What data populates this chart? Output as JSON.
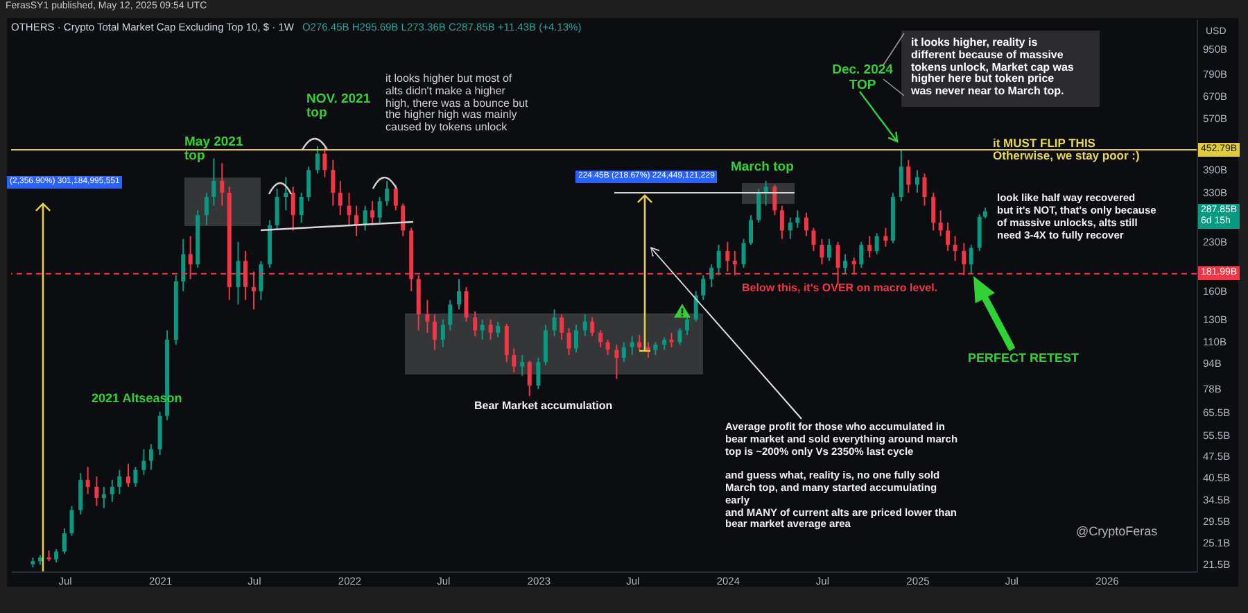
{
  "chart_data": {
    "type": "candlestick",
    "title": "OTHERS · Crypto Total Market Cap Excluding Top 10, $ · 1W",
    "subtitle": "O276.45B H295.69B L273.36B C287.85B +11.43B (+4.13%)",
    "ylabel": "USD",
    "annotations": [
      "FerasSY1 published, May 12, 2025 09:54 UTC",
      "(2,356.90%) 301,184,995,551",
      "May 2021\ntop",
      "NOV. 2021\ntop",
      "it looks higher but most of\nalts didn't make a higher\nhigh, there was a bounce but\nthe higher high was mainly\ncaused by tokens unlock",
      "2021 Altseason",
      "224.45B (218.67%) 224,449,121,229",
      "March top",
      "Bear Market accumulation",
      "Below this, it's OVER on macro level.",
      "Average profit for those who accumulated in\nbear market and sold everything around march\ntop is ~200% only Vs 2350% last cycle\n\nand guess what, reality is, no one fully sold\nMarch top, and many started accumulating\nearly\nand MANY of current alts are priced lower than\nbear market average area",
      "Dec. 2024\nTOP",
      "it looks higher, reality is\ndifferent because of massive\ntokens unlock, Market cap was\nhigher here but token price\nwas never near to March top.",
      "it MUST FLIP THIS\nOtherwise, we stay poor :)",
      "look like half way recovered\nbut it's NOT, that's only because\nof massive unlocks, alts still\nneed 3-4X to fully recover",
      "PERFECT RETEST",
      "@CryptoFeras",
      "287.85B\n6d 15h"
    ],
    "x": [
      "2020-05-01",
      "2020-05-15",
      "2020-06-01",
      "2020-06-15",
      "2020-07-01",
      "2020-07-15",
      "2020-08-01",
      "2020-08-15",
      "2020-09-01",
      "2020-09-15",
      "2020-10-01",
      "2020-10-15",
      "2020-11-01",
      "2020-11-15",
      "2020-12-01",
      "2020-12-15",
      "2021-01-01",
      "2021-01-15",
      "2021-02-01",
      "2021-02-15",
      "2021-03-01",
      "2021-03-15",
      "2021-04-01",
      "2021-04-15",
      "2021-05-01",
      "2021-05-15",
      "2021-06-01",
      "2021-06-15",
      "2021-07-01",
      "2021-07-15",
      "2021-08-01",
      "2021-08-15",
      "2021-09-01",
      "2021-09-15",
      "2021-10-01",
      "2021-10-15",
      "2021-11-01",
      "2021-11-15",
      "2021-12-01",
      "2021-12-15",
      "2022-01-01",
      "2022-01-15",
      "2022-02-01",
      "2022-02-15",
      "2022-03-01",
      "2022-03-15",
      "2022-04-01",
      "2022-04-15",
      "2022-05-01",
      "2022-05-15",
      "2022-06-01",
      "2022-06-15",
      "2022-07-01",
      "2022-07-15",
      "2022-08-01",
      "2022-08-15",
      "2022-09-01",
      "2022-09-15",
      "2022-10-01",
      "2022-10-15",
      "2022-11-01",
      "2022-11-15",
      "2022-12-01",
      "2022-12-15",
      "2023-01-01",
      "2023-01-15",
      "2023-02-01",
      "2023-02-15",
      "2023-03-01",
      "2023-03-15",
      "2023-04-01",
      "2023-04-15",
      "2023-05-01",
      "2023-05-15",
      "2023-06-01",
      "2023-06-15",
      "2023-07-01",
      "2023-07-15",
      "2023-08-01",
      "2023-08-15",
      "2023-09-01",
      "2023-09-15",
      "2023-10-01",
      "2023-10-15",
      "2023-11-01",
      "2023-11-15",
      "2023-12-01",
      "2023-12-15",
      "2024-01-01",
      "2024-01-15",
      "2024-02-01",
      "2024-02-15",
      "2024-03-01",
      "2024-03-15",
      "2024-04-01",
      "2024-04-15",
      "2024-05-01",
      "2024-05-15",
      "2024-06-01",
      "2024-06-15",
      "2024-07-01",
      "2024-07-15",
      "2024-08-01",
      "2024-08-15",
      "2024-09-01",
      "2024-09-15",
      "2024-10-01",
      "2024-10-15",
      "2024-11-01",
      "2024-11-15",
      "2024-12-01",
      "2024-12-15",
      "2025-01-01",
      "2025-01-15",
      "2025-02-01",
      "2025-02-15",
      "2025-03-01",
      "2025-03-15",
      "2025-04-01",
      "2025-04-15",
      "2025-05-01",
      "2025-05-12"
    ],
    "ohlc": [
      [
        21.5,
        22.6,
        21.0,
        22.0
      ],
      [
        22.0,
        23.0,
        21.4,
        22.6
      ],
      [
        22.6,
        23.8,
        22.0,
        22.3
      ],
      [
        22.3,
        24.0,
        21.8,
        23.6
      ],
      [
        23.6,
        28.0,
        23.2,
        27.0
      ],
      [
        27.0,
        33.0,
        26.5,
        32.0
      ],
      [
        32.0,
        42.0,
        31.0,
        40.0
      ],
      [
        40.0,
        44.0,
        36.0,
        38.0
      ],
      [
        38.0,
        41.0,
        33.0,
        35.0
      ],
      [
        35.0,
        38.0,
        32.5,
        36.0
      ],
      [
        36.0,
        40.0,
        34.0,
        38.0
      ],
      [
        38.0,
        43.0,
        36.0,
        41.0
      ],
      [
        41.0,
        45.0,
        38.0,
        39.0
      ],
      [
        39.0,
        44.0,
        38.0,
        43.0
      ],
      [
        43.0,
        50.0,
        41.5,
        46.0
      ],
      [
        46.0,
        52.0,
        43.0,
        50.0
      ],
      [
        50,
        66,
        48,
        64
      ],
      [
        64,
        120,
        62,
        112
      ],
      [
        112,
        180,
        108,
        172
      ],
      [
        172,
        235,
        160,
        210
      ],
      [
        210,
        240,
        175,
        195
      ],
      [
        195,
        290,
        190,
        280
      ],
      [
        280,
        330,
        260,
        320
      ],
      [
        320,
        425,
        300,
        360
      ],
      [
        360,
        410,
        300,
        330
      ],
      [
        330,
        345,
        150,
        165
      ],
      [
        165,
        230,
        145,
        200
      ],
      [
        200,
        215,
        150,
        165
      ],
      [
        165,
        185,
        140,
        160
      ],
      [
        160,
        200,
        150,
        195
      ],
      [
        195,
        270,
        190,
        260
      ],
      [
        260,
        340,
        250,
        320
      ],
      [
        320,
        370,
        290,
        330
      ],
      [
        330,
        345,
        250,
        280
      ],
      [
        280,
        330,
        265,
        320
      ],
      [
        320,
        400,
        310,
        390
      ],
      [
        390,
        465,
        380,
        440
      ],
      [
        440,
        460,
        370,
        390
      ],
      [
        390,
        420,
        300,
        330
      ],
      [
        330,
        360,
        280,
        300
      ],
      [
        300,
        330,
        260,
        280
      ],
      [
        280,
        300,
        240,
        260
      ],
      [
        260,
        300,
        250,
        290
      ],
      [
        290,
        310,
        260,
        275
      ],
      [
        275,
        320,
        265,
        310
      ],
      [
        310,
        360,
        300,
        340
      ],
      [
        340,
        350,
        290,
        300
      ],
      [
        300,
        305,
        240,
        250
      ],
      [
        250,
        255,
        160,
        175
      ],
      [
        175,
        180,
        120,
        135
      ],
      [
        135,
        150,
        118,
        128
      ],
      [
        128,
        135,
        104,
        112
      ],
      [
        112,
        130,
        106,
        125
      ],
      [
        125,
        150,
        120,
        145
      ],
      [
        145,
        175,
        140,
        160
      ],
      [
        160,
        165,
        128,
        132
      ],
      [
        132,
        138,
        115,
        120
      ],
      [
        120,
        130,
        112,
        125
      ],
      [
        125,
        130,
        112,
        118
      ],
      [
        118,
        128,
        114,
        124
      ],
      [
        124,
        126,
        95,
        100
      ],
      [
        100,
        105,
        88,
        92
      ],
      [
        92,
        100,
        86,
        95
      ],
      [
        95,
        96,
        74,
        80
      ],
      [
        80,
        98,
        78,
        95
      ],
      [
        95,
        125,
        93,
        120
      ],
      [
        120,
        140,
        115,
        132
      ],
      [
        132,
        135,
        112,
        118
      ],
      [
        118,
        122,
        100,
        105
      ],
      [
        105,
        125,
        102,
        120
      ],
      [
        120,
        135,
        115,
        128
      ],
      [
        128,
        132,
        115,
        118
      ],
      [
        118,
        120,
        106,
        110
      ],
      [
        110,
        112,
        100,
        104
      ],
      [
        104,
        108,
        84,
        98
      ],
      [
        98,
        110,
        95,
        106
      ],
      [
        106,
        115,
        100,
        110
      ],
      [
        110,
        116,
        104,
        106
      ],
      [
        106,
        110,
        98,
        104
      ],
      [
        104,
        110,
        100,
        108
      ],
      [
        108,
        114,
        104,
        112
      ],
      [
        112,
        118,
        106,
        110
      ],
      [
        110,
        122,
        108,
        120
      ],
      [
        120,
        135,
        116,
        130
      ],
      [
        130,
        160,
        128,
        155
      ],
      [
        155,
        180,
        150,
        175
      ],
      [
        175,
        195,
        165,
        190
      ],
      [
        190,
        225,
        180,
        215
      ],
      [
        215,
        230,
        185,
        200
      ],
      [
        200,
        215,
        180,
        195
      ],
      [
        195,
        235,
        190,
        228
      ],
      [
        228,
        280,
        225,
        270
      ],
      [
        270,
        340,
        265,
        330
      ],
      [
        330,
        360,
        300,
        345
      ],
      [
        345,
        350,
        280,
        290
      ],
      [
        290,
        300,
        235,
        250
      ],
      [
        250,
        275,
        235,
        265
      ],
      [
        265,
        290,
        255,
        275
      ],
      [
        275,
        285,
        240,
        250
      ],
      [
        250,
        255,
        215,
        225
      ],
      [
        225,
        235,
        195,
        205
      ],
      [
        205,
        235,
        200,
        225
      ],
      [
        225,
        230,
        168,
        190
      ],
      [
        190,
        210,
        182,
        200
      ],
      [
        200,
        205,
        182,
        195
      ],
      [
        195,
        230,
        190,
        225
      ],
      [
        225,
        240,
        205,
        215
      ],
      [
        215,
        245,
        210,
        240
      ],
      [
        240,
        255,
        222,
        232
      ],
      [
        232,
        330,
        228,
        320
      ],
      [
        320,
        452,
        310,
        400
      ],
      [
        400,
        420,
        330,
        350
      ],
      [
        350,
        390,
        330,
        370
      ],
      [
        370,
        380,
        300,
        320
      ],
      [
        320,
        330,
        250,
        265
      ],
      [
        265,
        290,
        240,
        250
      ],
      [
        250,
        265,
        215,
        225
      ],
      [
        225,
        240,
        200,
        215
      ],
      [
        215,
        228,
        180,
        195
      ],
      [
        195,
        225,
        182,
        220
      ],
      [
        220,
        282,
        215,
        276.45
      ],
      [
        276.45,
        295.69,
        273.36,
        287.85
      ]
    ],
    "colors": [
      "#089981",
      "#089981",
      "#f23645",
      "#089981",
      "#089981",
      "#089981",
      "#089981",
      "#f23645",
      "#f23645",
      "#089981",
      "#089981",
      "#089981",
      "#f23645",
      "#089981",
      "#089981",
      "#089981",
      "#089981",
      "#089981",
      "#089981",
      "#089981",
      "#f23645",
      "#089981",
      "#089981",
      "#089981",
      "#f23645",
      "#f23645",
      "#089981",
      "#f23645",
      "#f23645",
      "#089981",
      "#089981",
      "#089981",
      "#089981",
      "#f23645",
      "#089981",
      "#089981",
      "#089981",
      "#f23645",
      "#f23645",
      "#f23645",
      "#f23645",
      "#f23645",
      "#089981",
      "#f23645",
      "#089981",
      "#089981",
      "#f23645",
      "#f23645",
      "#f23645",
      "#f23645",
      "#f23645",
      "#f23645",
      "#089981",
      "#089981",
      "#089981",
      "#f23645",
      "#f23645",
      "#089981",
      "#f23645",
      "#089981",
      "#f23645",
      "#f23645",
      "#089981",
      "#f23645",
      "#089981",
      "#089981",
      "#089981",
      "#f23645",
      "#f23645",
      "#089981",
      "#089981",
      "#f23645",
      "#f23645",
      "#f23645",
      "#f23645",
      "#089981",
      "#089981",
      "#f23645",
      "#f23645",
      "#089981",
      "#089981",
      "#f23645",
      "#089981",
      "#089981",
      "#089981",
      "#089981",
      "#089981",
      "#089981",
      "#f23645",
      "#f23645",
      "#089981",
      "#089981",
      "#089981",
      "#089981",
      "#f23645",
      "#f23645",
      "#089981",
      "#089981",
      "#f23645",
      "#f23645",
      "#f23645",
      "#089981",
      "#f23645",
      "#089981",
      "#f23645",
      "#089981",
      "#f23645",
      "#089981",
      "#f23645",
      "#089981",
      "#089981",
      "#f23645",
      "#089981",
      "#f23645",
      "#f23645",
      "#f23645",
      "#f23645",
      "#f23645",
      "#f23645",
      "#089981",
      "#089981",
      "#089981"
    ],
    "xlim": [
      "2020-03-20",
      "2026-06-24"
    ],
    "xticks": [
      {
        "value": "2020-07",
        "label": "Jul"
      },
      "2021",
      {
        "value": "2021-07",
        "label": "Jul"
      },
      "2022",
      {
        "value": "2022-07",
        "label": "Jul"
      },
      "2023",
      {
        "value": "2023-07",
        "label": "Jul"
      },
      "2024",
      {
        "value": "2024-07",
        "label": "Jul"
      },
      "2025",
      {
        "value": "2025-07",
        "label": "Jul"
      },
      "2026"
    ],
    "ylim": [
      20.4,
      1180
    ],
    "yticks": [
      {
        "value": 950,
        "label": "950B"
      },
      {
        "value": 790,
        "label": "790B"
      },
      {
        "value": 670,
        "label": "670B"
      },
      {
        "value": 570,
        "label": "570B"
      },
      {
        "value": 390,
        "label": "390B"
      },
      {
        "value": 330,
        "label": "330B"
      },
      {
        "value": 230,
        "label": "230B"
      },
      {
        "value": 160,
        "label": "160B"
      },
      {
        "value": 130,
        "label": "130B"
      },
      {
        "value": 110,
        "label": "110B"
      },
      {
        "value": 94,
        "label": "94B"
      },
      {
        "value": 78,
        "label": "78B"
      },
      {
        "value": 65.5,
        "label": "65.5B"
      },
      {
        "value": 55.5,
        "label": "55.5B"
      },
      {
        "value": 47.5,
        "label": "47.5B"
      },
      {
        "value": 40.5,
        "label": "40.5B"
      },
      {
        "value": 34.5,
        "label": "34.5B"
      },
      {
        "value": 29.5,
        "label": "29.5B"
      },
      {
        "value": 25.1,
        "label": "25.1B"
      },
      {
        "value": 21.5,
        "label": "21.5B"
      }
    ],
    "log": true,
    "ref_lines": [
      {
        "axis": "y",
        "value": 452.79,
        "label": "452.79B",
        "color": "#e0cc3a"
      },
      {
        "axis": "y",
        "value": 181.99,
        "label": "181.99B",
        "color": "#f23645",
        "line_style": "dashed"
      }
    ]
  }
}
